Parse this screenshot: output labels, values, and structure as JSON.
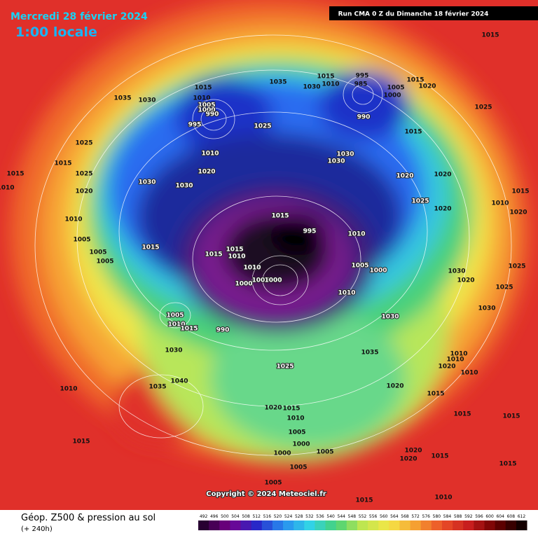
{
  "header": {
    "title": "Mercredi 28 février 2024",
    "time": "1:00 locale",
    "run": "Run CMA 0 Z du Dimanche 18 février 2024"
  },
  "copyright": "Copyright © 2024 Meteociel.fr",
  "footer": {
    "title": "Géop. Z500 & pression au sol",
    "lead": "(+ 240h)"
  },
  "scale": [
    492,
    496,
    500,
    504,
    508,
    512,
    516,
    520,
    524,
    528,
    532,
    536,
    540,
    544,
    548,
    552,
    556,
    560,
    564,
    568,
    572,
    576,
    580,
    584,
    588,
    592,
    596,
    600,
    604,
    608,
    612
  ],
  "pressure_labels": [
    1015,
    1035,
    1030,
    1015,
    1010,
    1005,
    1000,
    990,
    995,
    1025,
    1035,
    1015,
    1030,
    1010,
    995,
    985,
    990,
    1005,
    1000,
    1015,
    1020,
    1025,
    1015,
    1025,
    1015,
    1025,
    1015,
    1010,
    1020,
    1030,
    1030,
    1010,
    1020,
    1030,
    1030,
    1020,
    1020,
    1025,
    1020,
    1015,
    995,
    1010,
    1010,
    1005,
    1005,
    1005,
    1015,
    1015,
    1015,
    1010,
    1010,
    1005,
    1000,
    1000,
    1005,
    1000,
    1010,
    1005,
    1010,
    1015,
    990,
    1030,
    1030,
    1020,
    1025,
    1030,
    1035,
    1030,
    1025,
    1040,
    1035,
    1010,
    1020,
    1015,
    1020,
    1015,
    1010,
    1005,
    1000,
    1000,
    1005,
    1005,
    1005,
    1015,
    1020,
    1020,
    1015,
    1015,
    1015,
    1015,
    1010,
    1015,
    1010,
    1010,
    1020,
    1010,
    1025,
    1020,
    1010,
    1015
  ]
}
